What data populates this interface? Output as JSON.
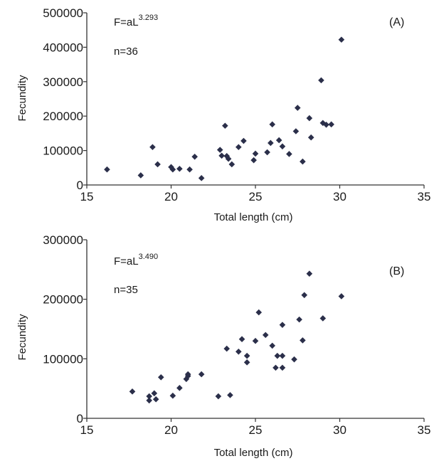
{
  "chart_data": [
    {
      "type": "scatter",
      "panel_label": "(A)",
      "xlabel": "Total length (cm)",
      "ylabel": "Fecundity",
      "xlim": [
        15,
        35
      ],
      "ylim": [
        0,
        500000
      ],
      "x_ticks": [
        "15",
        "20",
        "25",
        "30",
        "35"
      ],
      "y_ticks": [
        "0",
        "100000",
        "200000",
        "300000",
        "400000",
        "500000"
      ],
      "equation": {
        "base": "F=aL",
        "exponent": "3.293"
      },
      "n_label": "n=36",
      "marker_color": "#2b2f4a",
      "grid": false,
      "points": [
        [
          16.2,
          45000
        ],
        [
          18.2,
          28000
        ],
        [
          18.9,
          110000
        ],
        [
          19.2,
          60000
        ],
        [
          20.0,
          52000
        ],
        [
          20.1,
          45000
        ],
        [
          20.5,
          47000
        ],
        [
          21.1,
          45000
        ],
        [
          21.4,
          82000
        ],
        [
          21.8,
          20000
        ],
        [
          22.9,
          102000
        ],
        [
          23.0,
          85000
        ],
        [
          23.2,
          172000
        ],
        [
          23.3,
          84000
        ],
        [
          23.4,
          76000
        ],
        [
          23.6,
          60000
        ],
        [
          24.3,
          128000
        ],
        [
          24.9,
          72000
        ],
        [
          25.0,
          91000
        ],
        [
          25.7,
          95000
        ],
        [
          25.9,
          122000
        ],
        [
          26.0,
          176000
        ],
        [
          26.4,
          130000
        ],
        [
          27.0,
          90000
        ],
        [
          27.4,
          156000
        ],
        [
          27.5,
          224000
        ],
        [
          27.8,
          68000
        ],
        [
          28.2,
          194000
        ],
        [
          28.3,
          138000
        ],
        [
          28.9,
          304000
        ],
        [
          29.0,
          180000
        ],
        [
          29.2,
          175000
        ],
        [
          29.5,
          176000
        ],
        [
          30.1,
          422000
        ],
        [
          24.0,
          110000
        ],
        [
          26.6,
          112000
        ]
      ]
    },
    {
      "type": "scatter",
      "panel_label": "(B)",
      "xlabel": "Total length (cm)",
      "ylabel": "Fecundity",
      "xlim": [
        15,
        35
      ],
      "ylim": [
        0,
        300000
      ],
      "x_ticks": [
        "15",
        "20",
        "25",
        "30",
        "35"
      ],
      "y_ticks": [
        "0",
        "100000",
        "200000",
        "300000"
      ],
      "equation": {
        "base": "F=aL",
        "exponent": "3.490"
      },
      "n_label": "n=35",
      "marker_color": "#2b2f4a",
      "grid": false,
      "points": [
        [
          17.7,
          45000
        ],
        [
          18.7,
          37000
        ],
        [
          18.7,
          30000
        ],
        [
          19.0,
          42000
        ],
        [
          19.1,
          32000
        ],
        [
          19.4,
          69000
        ],
        [
          20.1,
          38000
        ],
        [
          20.5,
          51000
        ],
        [
          20.9,
          66000
        ],
        [
          21.0,
          71000
        ],
        [
          21.0,
          74000
        ],
        [
          21.8,
          74000
        ],
        [
          22.8,
          37000
        ],
        [
          23.3,
          117000
        ],
        [
          23.5,
          39000
        ],
        [
          24.2,
          133000
        ],
        [
          24.5,
          105000
        ],
        [
          24.5,
          94000
        ],
        [
          25.0,
          130000
        ],
        [
          25.2,
          178000
        ],
        [
          26.0,
          122000
        ],
        [
          26.2,
          85000
        ],
        [
          26.3,
          105000
        ],
        [
          26.6,
          105000
        ],
        [
          26.6,
          85000
        ],
        [
          26.6,
          157000
        ],
        [
          27.3,
          99000
        ],
        [
          27.6,
          166000
        ],
        [
          27.8,
          131000
        ],
        [
          27.9,
          207000
        ],
        [
          28.2,
          243000
        ],
        [
          29.0,
          168000
        ],
        [
          30.1,
          205000
        ],
        [
          24.0,
          112000
        ],
        [
          25.6,
          140000
        ]
      ]
    }
  ]
}
